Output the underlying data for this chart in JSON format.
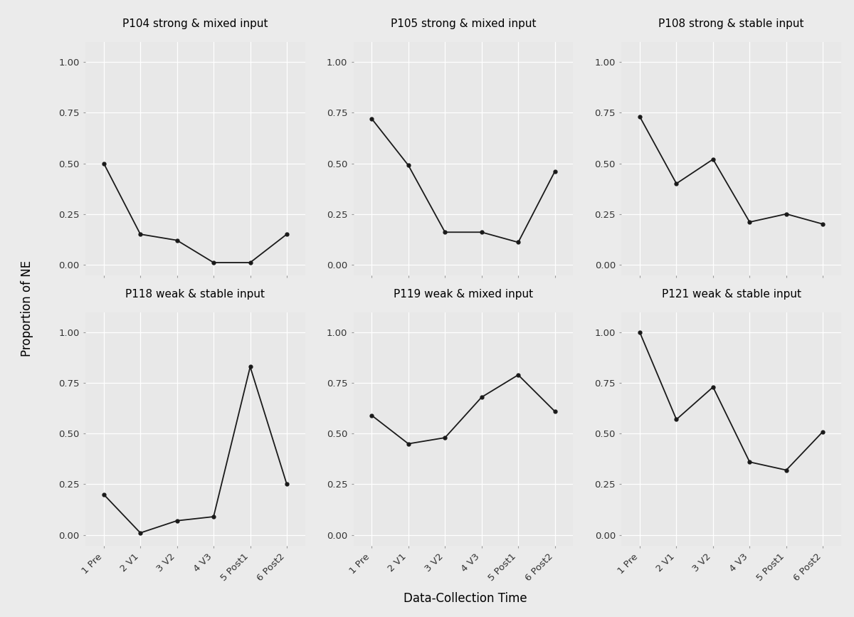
{
  "panels": [
    {
      "title": "P104 strong & mixed input",
      "x": [
        1,
        2,
        3,
        4,
        5,
        6
      ],
      "y": [
        0.5,
        0.15,
        0.12,
        0.01,
        0.01,
        0.15
      ]
    },
    {
      "title": "P105 strong & mixed input",
      "x": [
        1,
        2,
        3,
        4,
        5,
        6
      ],
      "y": [
        0.72,
        0.49,
        0.16,
        0.16,
        0.11,
        0.46
      ]
    },
    {
      "title": "P108 strong & stable input",
      "x": [
        1,
        2,
        3,
        4,
        5,
        6
      ],
      "y": [
        0.73,
        0.4,
        0.52,
        0.21,
        0.25,
        0.2
      ]
    },
    {
      "title": "P118 weak & stable input",
      "x": [
        1,
        2,
        3,
        4,
        5,
        6
      ],
      "y": [
        0.2,
        0.01,
        0.07,
        0.09,
        0.83,
        0.25
      ]
    },
    {
      "title": "P119 weak & mixed input",
      "x": [
        1,
        2,
        3,
        4,
        5,
        6
      ],
      "y": [
        0.59,
        0.45,
        0.48,
        0.68,
        0.79,
        0.61
      ]
    },
    {
      "title": "P121 weak & stable input",
      "x": [
        1,
        2,
        3,
        4,
        5,
        6
      ],
      "y": [
        1.0,
        0.57,
        0.73,
        0.36,
        0.32,
        0.51
      ]
    }
  ],
  "x_tick_labels": [
    "1 Pre",
    "2 V1",
    "3 V2",
    "4 V3",
    "5 Post1",
    "6 Post2"
  ],
  "ylabel": "Proportion of NE",
  "xlabel": "Data-Collection Time",
  "yticks": [
    0.0,
    0.25,
    0.5,
    0.75,
    1.0
  ],
  "fig_bg_color": "#EBEBEB",
  "panel_bg_color": "#E8E8E8",
  "strip_bg_color": "#D3D3D3",
  "grid_color": "#FFFFFF",
  "line_color": "#1A1A1A",
  "marker_color": "#1A1A1A",
  "title_fontsize": 11,
  "label_fontsize": 12,
  "tick_fontsize": 9.5
}
